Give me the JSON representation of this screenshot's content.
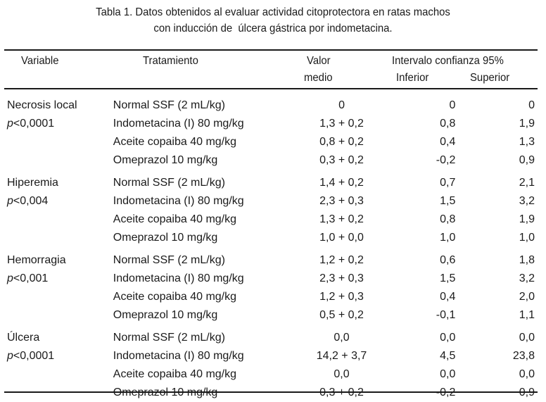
{
  "caption": {
    "line1": "Tabla 1. Datos obtenidos al evaluar actividad citoprotectora en ratas machos",
    "line2": "con inducción de  úlcera gástrica por indometacina."
  },
  "header": {
    "variable": "Variable",
    "tratamiento": "Tratamiento",
    "valor_line1": "Valor",
    "valor_line2": "medio",
    "intervalo": "Intervalo confianza 95%",
    "inferior": "Inferior",
    "superior": "Superior"
  },
  "groups": [
    {
      "variable": "Necrosis local",
      "p_symbol": "p",
      "p_value": "<0,0001",
      "rows": [
        {
          "tratamiento": "Normal SSF (2 mL/kg)",
          "valor": "0",
          "inferior": "0",
          "superior": "0"
        },
        {
          "tratamiento": "Indometacina (I) 80 mg/kg",
          "valor": "1,3 + 0,2",
          "inferior": "0,8",
          "superior": "1,9"
        },
        {
          "tratamiento": "Aceite copaiba 40 mg/kg",
          "valor": "0,8 + 0,2",
          "inferior": "0,4",
          "superior": "1,3"
        },
        {
          "tratamiento": "Omeprazol 10 mg/kg",
          "valor": "0,3 + 0,2",
          "inferior": "-0,2",
          "superior": "0,9"
        }
      ]
    },
    {
      "variable": "Hiperemia",
      "p_symbol": "p",
      "p_value": "<0,004",
      "rows": [
        {
          "tratamiento": "Normal SSF (2 mL/kg)",
          "valor": "1,4 + 0,2",
          "inferior": "0,7",
          "superior": "2,1"
        },
        {
          "tratamiento": "Indometacina (I) 80 mg/kg",
          "valor": "2,3 + 0,3",
          "inferior": "1,5",
          "superior": "3,2"
        },
        {
          "tratamiento": "Aceite copaiba 40 mg/kg",
          "valor": "1,3 + 0,2",
          "inferior": "0,8",
          "superior": "1,9"
        },
        {
          "tratamiento": "Omeprazol 10 mg/kg",
          "valor": "1,0 + 0,0",
          "inferior": "1,0",
          "superior": "1,0"
        }
      ]
    },
    {
      "variable": "Hemorragia",
      "p_symbol": "p",
      "p_value": "<0,001",
      "rows": [
        {
          "tratamiento": "Normal SSF (2 mL/kg)",
          "valor": "1,2 + 0,2",
          "inferior": "0,6",
          "superior": "1,8"
        },
        {
          "tratamiento": "Indometacina (I) 80 mg/kg",
          "valor": "2,3 + 0,3",
          "inferior": "1,5",
          "superior": "3,2"
        },
        {
          "tratamiento": "Aceite copaiba 40 mg/kg",
          "valor": "1,2 + 0,3",
          "inferior": "0,4",
          "superior": "2,0"
        },
        {
          "tratamiento": "Omeprazol 10 mg/kg",
          "valor": "0,5 + 0,2",
          "inferior": "-0,1",
          "superior": "1,1"
        }
      ]
    },
    {
      "variable": "Úlcera",
      "p_symbol": "p",
      "p_value": "<0,0001",
      "rows": [
        {
          "tratamiento": "Normal SSF (2 mL/kg)",
          "valor": "0,0",
          "inferior": "0,0",
          "superior": "0,0"
        },
        {
          "tratamiento": "Indometacina (I) 80 mg/kg",
          "valor": "14,2 + 3,7",
          "inferior": "4,5",
          "superior": "23,8"
        },
        {
          "tratamiento": "Aceite copaiba 40 mg/kg",
          "valor": "0,0",
          "inferior": "0,0",
          "superior": "0,0"
        },
        {
          "tratamiento": "Omeprazol 10 mg/kg",
          "valor": "0,3 + 0,2",
          "inferior": "-0,2",
          "superior": "0,9"
        }
      ]
    }
  ]
}
